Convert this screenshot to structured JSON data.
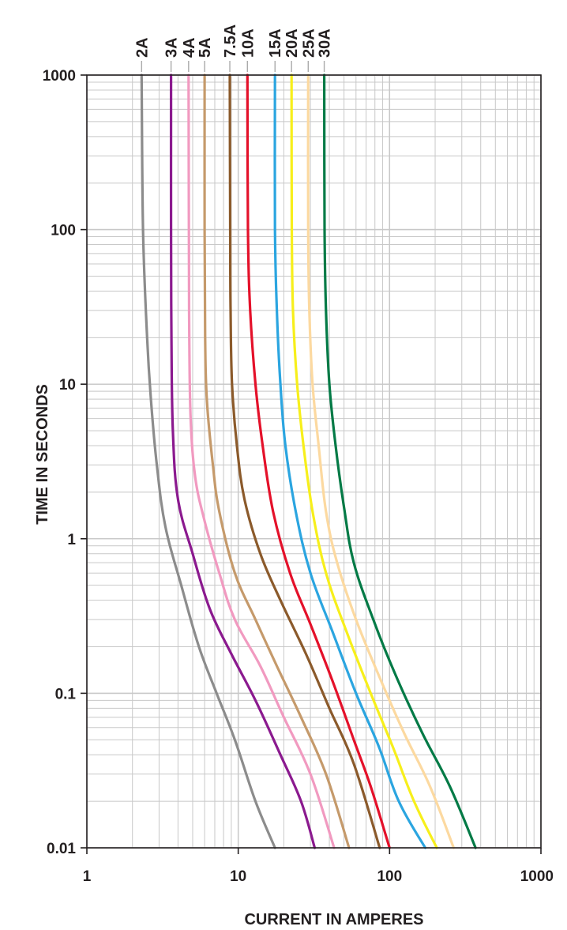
{
  "chart_data": {
    "type": "line",
    "xlabel": "CURRENT IN AMPERES",
    "ylabel": "TIME IN SECONDS",
    "xscale": "log",
    "yscale": "log",
    "xlim": [
      1,
      1000
    ],
    "ylim": [
      0.01,
      1000
    ],
    "grid": true,
    "legend": "top (labels above curves)",
    "x_ticks": [
      {
        "value": 1,
        "label": "1"
      },
      {
        "value": 10,
        "label": "10"
      },
      {
        "value": 100,
        "label": "100"
      },
      {
        "value": 1000,
        "label": "1000"
      }
    ],
    "y_ticks": [
      {
        "value": 0.01,
        "label": "0.01"
      },
      {
        "value": 0.1,
        "label": "0.1"
      },
      {
        "value": 1,
        "label": "1"
      },
      {
        "value": 10,
        "label": "10"
      },
      {
        "value": 100,
        "label": "100"
      },
      {
        "value": 1000,
        "label": "1000"
      }
    ],
    "series": [
      {
        "name": "2A",
        "color": "#8c8c8c",
        "points": [
          [
            2.3,
            1000
          ],
          [
            2.35,
            100
          ],
          [
            2.5,
            20
          ],
          [
            2.65,
            8
          ],
          [
            2.9,
            3
          ],
          [
            3.3,
            1.2
          ],
          [
            4.2,
            0.5
          ],
          [
            5.5,
            0.2
          ],
          [
            7.2,
            0.1
          ],
          [
            9.5,
            0.05
          ],
          [
            13,
            0.02
          ],
          [
            17.5,
            0.01
          ]
        ]
      },
      {
        "name": "3A",
        "color": "#8b1a8f",
        "points": [
          [
            3.6,
            1000
          ],
          [
            3.6,
            100
          ],
          [
            3.62,
            20
          ],
          [
            3.7,
            5
          ],
          [
            4.0,
            1.8
          ],
          [
            5.0,
            0.8
          ],
          [
            6.5,
            0.35
          ],
          [
            9.0,
            0.18
          ],
          [
            13,
            0.09
          ],
          [
            19,
            0.04
          ],
          [
            26,
            0.02
          ],
          [
            32,
            0.01
          ]
        ]
      },
      {
        "name": "4A",
        "color": "#f19ac0",
        "points": [
          [
            4.7,
            1000
          ],
          [
            4.72,
            100
          ],
          [
            4.75,
            20
          ],
          [
            4.85,
            6
          ],
          [
            5.2,
            2.5
          ],
          [
            6.0,
            1.3
          ],
          [
            7.5,
            0.6
          ],
          [
            9.5,
            0.3
          ],
          [
            14,
            0.15
          ],
          [
            20,
            0.07
          ],
          [
            30,
            0.03
          ],
          [
            43,
            0.01
          ]
        ]
      },
      {
        "name": "5A",
        "color": "#c59a6b",
        "points": [
          [
            6.0,
            1000
          ],
          [
            6.0,
            100
          ],
          [
            6.05,
            20
          ],
          [
            6.2,
            8
          ],
          [
            6.8,
            3
          ],
          [
            7.5,
            1.5
          ],
          [
            9.5,
            0.6
          ],
          [
            13,
            0.3
          ],
          [
            18,
            0.15
          ],
          [
            26,
            0.07
          ],
          [
            38,
            0.03
          ],
          [
            54,
            0.01
          ]
        ]
      },
      {
        "name": "7.5A",
        "color": "#8b5a2b",
        "points": [
          [
            8.8,
            1000
          ],
          [
            8.85,
            100
          ],
          [
            8.9,
            30
          ],
          [
            9.1,
            10
          ],
          [
            9.8,
            4
          ],
          [
            11,
            1.8
          ],
          [
            14,
            0.8
          ],
          [
            19,
            0.4
          ],
          [
            28,
            0.18
          ],
          [
            40,
            0.08
          ],
          [
            58,
            0.035
          ],
          [
            86,
            0.01
          ]
        ]
      },
      {
        "name": "10A",
        "color": "#e4112a",
        "points": [
          [
            11.5,
            1000
          ],
          [
            11.6,
            100
          ],
          [
            12,
            30
          ],
          [
            13,
            10
          ],
          [
            14.5,
            4
          ],
          [
            17,
            1.5
          ],
          [
            22,
            0.6
          ],
          [
            30,
            0.28
          ],
          [
            42,
            0.12
          ],
          [
            58,
            0.05
          ],
          [
            75,
            0.025
          ],
          [
            100,
            0.01
          ]
        ]
      },
      {
        "name": "15A",
        "color": "#2ba5e0",
        "points": [
          [
            17.5,
            1000
          ],
          [
            17.5,
            100
          ],
          [
            18,
            30
          ],
          [
            19,
            10
          ],
          [
            20.5,
            4
          ],
          [
            24,
            1.5
          ],
          [
            30,
            0.6
          ],
          [
            42,
            0.25
          ],
          [
            60,
            0.1
          ],
          [
            85,
            0.045
          ],
          [
            115,
            0.02
          ],
          [
            172,
            0.01
          ]
        ]
      },
      {
        "name": "20A",
        "color": "#f7ef1b",
        "points": [
          [
            22.5,
            1000
          ],
          [
            22.6,
            100
          ],
          [
            23,
            30
          ],
          [
            24.5,
            10
          ],
          [
            27,
            4
          ],
          [
            31,
            1.5
          ],
          [
            38,
            0.6
          ],
          [
            52,
            0.25
          ],
          [
            75,
            0.1
          ],
          [
            105,
            0.045
          ],
          [
            145,
            0.02
          ],
          [
            205,
            0.01
          ]
        ]
      },
      {
        "name": "25A",
        "color": "#fcd9a0",
        "points": [
          [
            29,
            1000
          ],
          [
            29,
            100
          ],
          [
            29.5,
            30
          ],
          [
            31,
            10
          ],
          [
            34,
            4
          ],
          [
            38,
            1.5
          ],
          [
            45,
            0.7
          ],
          [
            60,
            0.3
          ],
          [
            85,
            0.13
          ],
          [
            125,
            0.055
          ],
          [
            185,
            0.025
          ],
          [
            265,
            0.01
          ]
        ]
      },
      {
        "name": "30A",
        "color": "#037a46",
        "points": [
          [
            37,
            1000
          ],
          [
            37.2,
            100
          ],
          [
            38,
            30
          ],
          [
            40,
            10
          ],
          [
            44,
            4
          ],
          [
            50,
            1.6
          ],
          [
            58,
            0.7
          ],
          [
            78,
            0.3
          ],
          [
            110,
            0.13
          ],
          [
            165,
            0.055
          ],
          [
            250,
            0.025
          ],
          [
            370,
            0.01
          ]
        ]
      }
    ]
  }
}
